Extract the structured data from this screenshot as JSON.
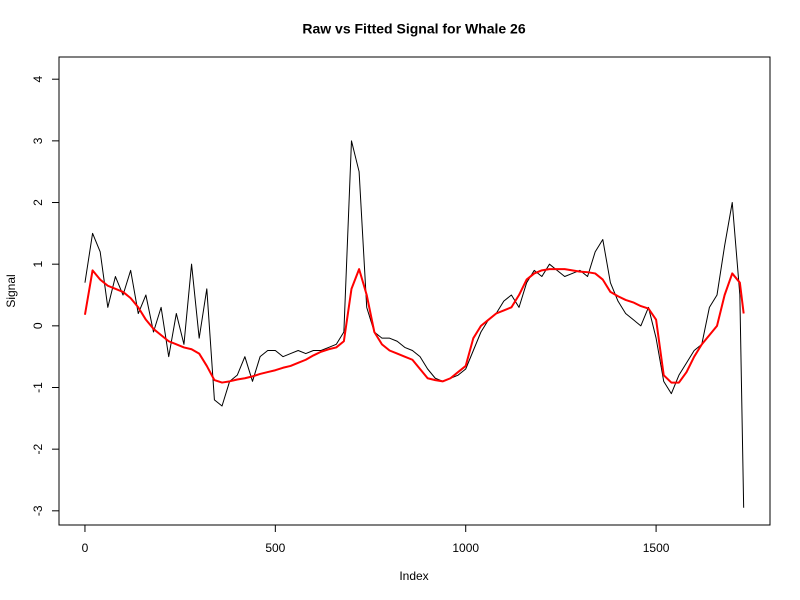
{
  "chart_data": {
    "type": "line",
    "title": "Raw vs Fitted Signal for Whale 26",
    "xlabel": "Index",
    "ylabel": "Signal",
    "x": [
      0,
      20,
      40,
      60,
      80,
      100,
      120,
      140,
      160,
      180,
      200,
      220,
      240,
      260,
      280,
      300,
      320,
      340,
      360,
      380,
      400,
      420,
      440,
      460,
      480,
      500,
      520,
      540,
      560,
      580,
      600,
      620,
      640,
      660,
      680,
      700,
      720,
      740,
      760,
      780,
      800,
      820,
      840,
      860,
      880,
      900,
      920,
      940,
      960,
      980,
      1000,
      1020,
      1040,
      1060,
      1080,
      1100,
      1120,
      1140,
      1160,
      1180,
      1200,
      1220,
      1240,
      1260,
      1280,
      1300,
      1320,
      1340,
      1360,
      1380,
      1400,
      1420,
      1440,
      1460,
      1480,
      1500,
      1520,
      1540,
      1560,
      1580,
      1600,
      1620,
      1640,
      1660,
      1680,
      1700,
      1720,
      1730
    ],
    "series": [
      {
        "color": "#000000",
        "width": 1,
        "values": [
          0.7,
          1.5,
          1.2,
          0.3,
          0.8,
          0.5,
          0.9,
          0.2,
          0.5,
          -0.1,
          0.3,
          -0.5,
          0.2,
          -0.3,
          1.0,
          -0.2,
          0.6,
          -1.2,
          -1.3,
          -0.9,
          -0.8,
          -0.5,
          -0.9,
          -0.5,
          -0.4,
          -0.4,
          -0.5,
          -0.45,
          -0.4,
          -0.45,
          -0.4,
          -0.4,
          -0.35,
          -0.3,
          -0.1,
          3.0,
          2.5,
          0.3,
          -0.1,
          -0.2,
          -0.2,
          -0.25,
          -0.35,
          -0.4,
          -0.5,
          -0.7,
          -0.85,
          -0.9,
          -0.85,
          -0.8,
          -0.7,
          -0.4,
          -0.1,
          0.1,
          0.2,
          0.4,
          0.5,
          0.3,
          0.7,
          0.9,
          0.8,
          1.0,
          0.9,
          0.8,
          0.85,
          0.9,
          0.8,
          1.2,
          1.4,
          0.7,
          0.4,
          0.2,
          0.1,
          0.0,
          0.3,
          -0.2,
          -0.9,
          -1.1,
          -0.8,
          -0.6,
          -0.4,
          -0.3,
          0.3,
          0.5,
          1.3,
          2.0,
          0.5,
          -2.95
        ]
      },
      {
        "color": "#ff0000",
        "width": 2,
        "values": [
          0.18,
          0.9,
          0.75,
          0.65,
          0.6,
          0.55,
          0.45,
          0.3,
          0.1,
          -0.05,
          -0.15,
          -0.25,
          -0.3,
          -0.35,
          -0.38,
          -0.45,
          -0.65,
          -0.88,
          -0.92,
          -0.9,
          -0.87,
          -0.85,
          -0.82,
          -0.78,
          -0.75,
          -0.72,
          -0.68,
          -0.65,
          -0.6,
          -0.55,
          -0.48,
          -0.42,
          -0.38,
          -0.35,
          -0.25,
          0.6,
          0.92,
          0.5,
          -0.1,
          -0.3,
          -0.4,
          -0.45,
          -0.5,
          -0.55,
          -0.7,
          -0.85,
          -0.88,
          -0.9,
          -0.85,
          -0.75,
          -0.65,
          -0.2,
          0.0,
          0.1,
          0.2,
          0.25,
          0.3,
          0.5,
          0.75,
          0.85,
          0.9,
          0.92,
          0.92,
          0.92,
          0.9,
          0.88,
          0.87,
          0.85,
          0.75,
          0.55,
          0.48,
          0.42,
          0.38,
          0.32,
          0.28,
          0.1,
          -0.8,
          -0.92,
          -0.92,
          -0.75,
          -0.5,
          -0.3,
          -0.15,
          0.0,
          0.5,
          0.85,
          0.7,
          0.2
        ]
      }
    ],
    "xlim": [
      -68.16,
      1799.16
    ],
    "ylim": [
      -3.23,
      4.36
    ],
    "xticks": [
      0,
      500,
      1000,
      1500
    ],
    "yticks": [
      -3,
      -2,
      -1,
      0,
      1,
      2,
      3,
      4
    ]
  }
}
